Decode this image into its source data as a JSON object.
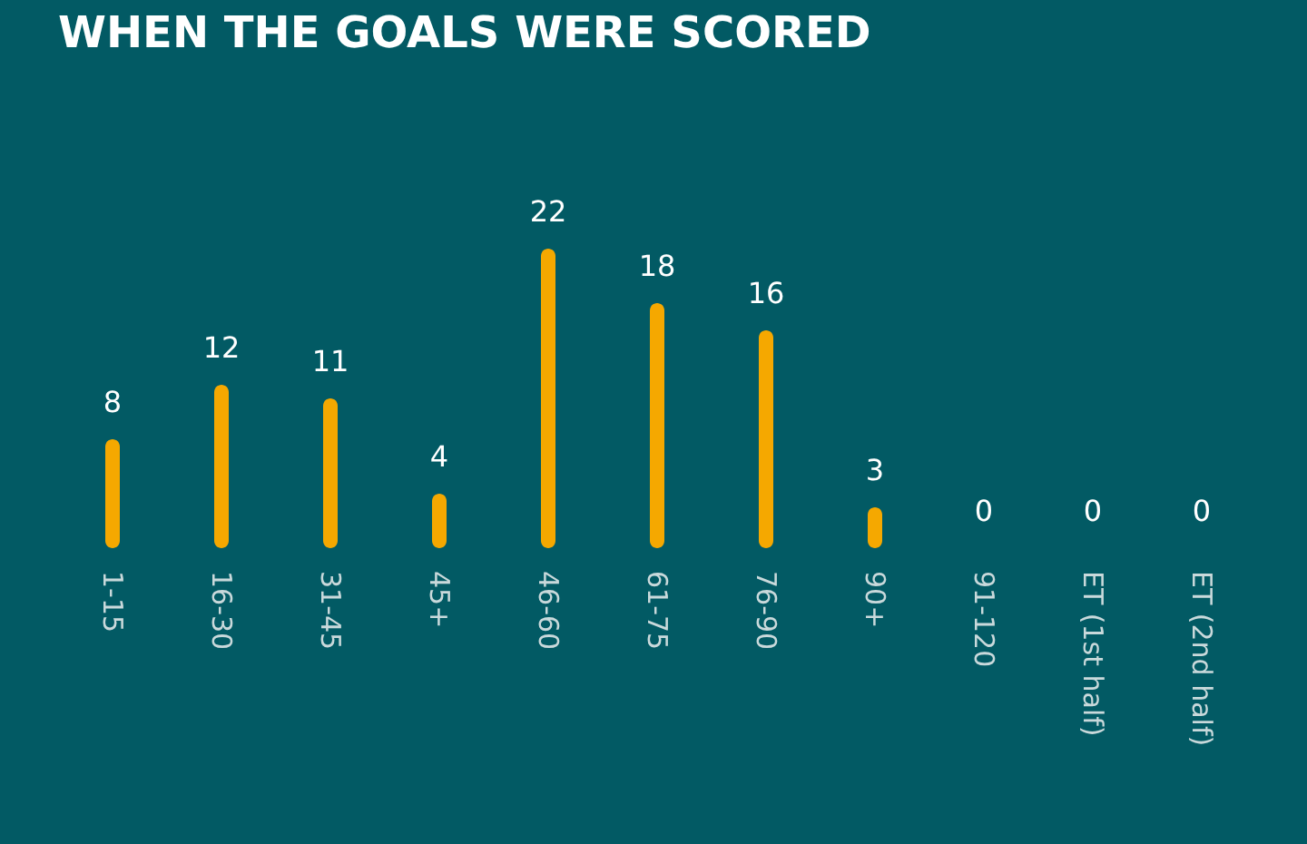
{
  "chart_data": {
    "type": "bar",
    "title": "WHEN THE GOALS WERE SCORED",
    "categories": [
      "1-15",
      "16-30",
      "31-45",
      "45+",
      "46-60",
      "61-75",
      "76-90",
      "90+",
      "91-120",
      "ET (1st half)",
      "ET (2nd half)"
    ],
    "values": [
      8,
      12,
      11,
      4,
      22,
      18,
      16,
      3,
      0,
      0,
      0
    ],
    "color": "#f5a800",
    "data_labels": true
  }
}
